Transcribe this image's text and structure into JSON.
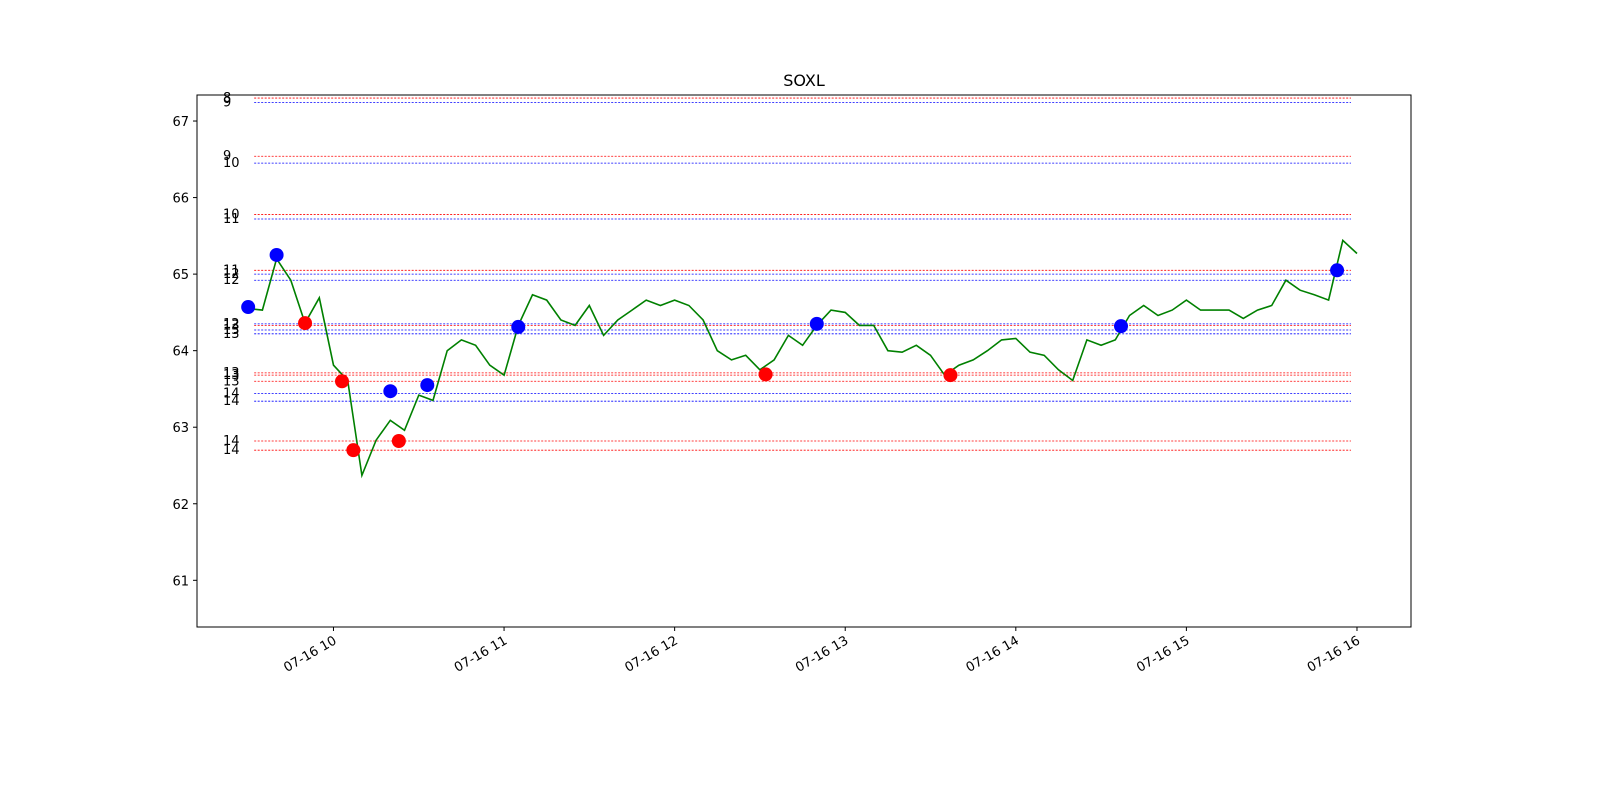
{
  "chart_data": {
    "type": "line",
    "title": "SOXL",
    "xlim": [
      552,
      979
    ],
    "ylim": [
      60.39,
      67.34
    ],
    "xticks": [
      {
        "value": 600,
        "label": "07-16 10"
      },
      {
        "value": 660,
        "label": "07-16 11"
      },
      {
        "value": 720,
        "label": "07-16 12"
      },
      {
        "value": 780,
        "label": "07-16 13"
      },
      {
        "value": 840,
        "label": "07-16 14"
      },
      {
        "value": 900,
        "label": "07-16 15"
      },
      {
        "value": 960,
        "label": "07-16 16"
      }
    ],
    "yticks": [
      61,
      62,
      63,
      64,
      65,
      66,
      67
    ],
    "series": [
      {
        "color": "green",
        "x": [
          570,
          575,
          580,
          585,
          590,
          595,
          600,
          605,
          610,
          615,
          620,
          625,
          630,
          635,
          640,
          645,
          650,
          655,
          660,
          665,
          670,
          675,
          680,
          685,
          690,
          695,
          700,
          705,
          710,
          715,
          720,
          725,
          730,
          735,
          740,
          745,
          750,
          755,
          760,
          765,
          770,
          775,
          780,
          785,
          790,
          795,
          800,
          805,
          810,
          815,
          820,
          825,
          830,
          835,
          840,
          845,
          850,
          855,
          860,
          865,
          870,
          875,
          880,
          885,
          890,
          895,
          900,
          905,
          910,
          915,
          920,
          925,
          930,
          935,
          940,
          945,
          950,
          955,
          960
        ],
        "values": [
          64.55,
          64.53,
          65.2,
          64.92,
          64.36,
          64.69,
          63.81,
          63.61,
          62.37,
          62.83,
          63.09,
          62.96,
          63.42,
          63.35,
          64.0,
          64.14,
          64.07,
          63.81,
          63.68,
          64.33,
          64.73,
          64.66,
          64.4,
          64.33,
          64.59,
          64.2,
          64.4,
          64.53,
          64.66,
          64.59,
          64.66,
          64.59,
          64.4,
          64.0,
          63.88,
          63.94,
          63.75,
          63.88,
          64.2,
          64.07,
          64.33,
          64.53,
          64.5,
          64.33,
          64.33,
          64.0,
          63.98,
          64.07,
          63.94,
          63.68,
          63.81,
          63.88,
          64.0,
          64.14,
          64.16,
          63.98,
          63.94,
          63.75,
          63.61,
          64.14,
          64.07,
          64.14,
          64.46,
          64.59,
          64.46,
          64.53,
          64.66,
          64.53,
          64.53,
          64.53,
          64.42,
          64.53,
          64.59,
          64.92,
          64.79,
          64.73,
          64.66,
          65.44,
          65.27
        ]
      }
    ],
    "markers": [
      {
        "color": "blue",
        "x": [
          570,
          580,
          620,
          633,
          665,
          770,
          877,
          953
        ],
        "values": [
          64.57,
          65.25,
          63.47,
          63.55,
          64.31,
          64.35,
          64.32,
          65.05
        ]
      },
      {
        "color": "red",
        "x": [
          590,
          603,
          607,
          623,
          752,
          817
        ],
        "values": [
          64.36,
          63.6,
          62.7,
          62.82,
          63.69,
          63.68
        ]
      }
    ],
    "levels": [
      {
        "value": 67.3,
        "label": "8",
        "color": "red"
      },
      {
        "value": 67.24,
        "label": "9",
        "color": "blue"
      },
      {
        "value": 66.54,
        "label": "9",
        "color": "red"
      },
      {
        "value": 66.45,
        "label": "10",
        "color": "blue"
      },
      {
        "value": 65.78,
        "label": "10",
        "color": "red"
      },
      {
        "value": 65.72,
        "label": "11",
        "color": "blue"
      },
      {
        "value": 65.05,
        "label": "11",
        "color": "red"
      },
      {
        "value": 65.0,
        "label": "12",
        "color": "blue"
      },
      {
        "value": 64.92,
        "label": "12",
        "color": "blue"
      },
      {
        "value": 64.35,
        "label": "12",
        "color": "blue"
      },
      {
        "value": 64.33,
        "label": "13",
        "color": "red"
      },
      {
        "value": 64.27,
        "label": "13",
        "color": "blue"
      },
      {
        "value": 64.22,
        "label": "13",
        "color": "blue"
      },
      {
        "value": 63.71,
        "label": "13",
        "color": "red"
      },
      {
        "value": 63.68,
        "label": "13",
        "color": "red"
      },
      {
        "value": 63.6,
        "label": "13",
        "color": "red"
      },
      {
        "value": 63.44,
        "label": "14",
        "color": "blue"
      },
      {
        "value": 63.34,
        "label": "14",
        "color": "blue"
      },
      {
        "value": 62.82,
        "label": "14",
        "color": "red"
      },
      {
        "value": 62.7,
        "label": "14",
        "color": "red"
      }
    ]
  }
}
